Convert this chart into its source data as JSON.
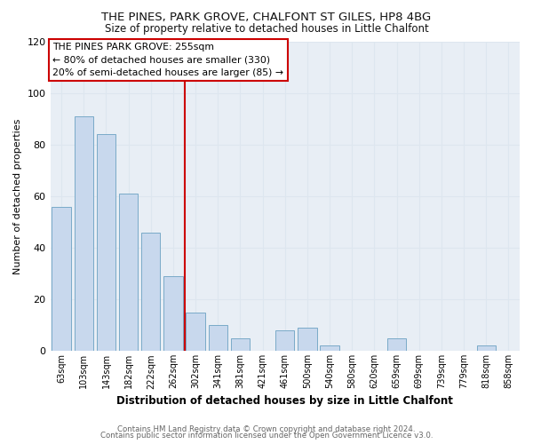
{
  "title": "THE PINES, PARK GROVE, CHALFONT ST GILES, HP8 4BG",
  "subtitle": "Size of property relative to detached houses in Little Chalfont",
  "xlabel": "Distribution of detached houses by size in Little Chalfont",
  "ylabel": "Number of detached properties",
  "bar_color": "#c8d8ed",
  "bar_edge_color": "#7aaac8",
  "categories": [
    "63sqm",
    "103sqm",
    "143sqm",
    "182sqm",
    "222sqm",
    "262sqm",
    "302sqm",
    "341sqm",
    "381sqm",
    "421sqm",
    "461sqm",
    "500sqm",
    "540sqm",
    "580sqm",
    "620sqm",
    "659sqm",
    "699sqm",
    "739sqm",
    "779sqm",
    "818sqm",
    "858sqm"
  ],
  "values": [
    56,
    91,
    84,
    61,
    46,
    29,
    15,
    10,
    5,
    0,
    8,
    9,
    2,
    0,
    0,
    5,
    0,
    0,
    0,
    2,
    0
  ],
  "vline_x": 5.5,
  "vline_color": "#cc0000",
  "ylim": [
    0,
    120
  ],
  "yticks": [
    0,
    20,
    40,
    60,
    80,
    100,
    120
  ],
  "annotation_title": "THE PINES PARK GROVE: 255sqm",
  "annotation_line1": "← 80% of detached houses are smaller (330)",
  "annotation_line2": "20% of semi-detached houses are larger (85) →",
  "annotation_box_color": "#ffffff",
  "annotation_box_edge": "#cc0000",
  "grid_color": "#dde6ef",
  "footer1": "Contains HM Land Registry data © Crown copyright and database right 2024.",
  "footer2": "Contains public sector information licensed under the Open Government Licence v3.0.",
  "bg_color": "#ffffff",
  "plot_bg_color": "#e8eef5"
}
